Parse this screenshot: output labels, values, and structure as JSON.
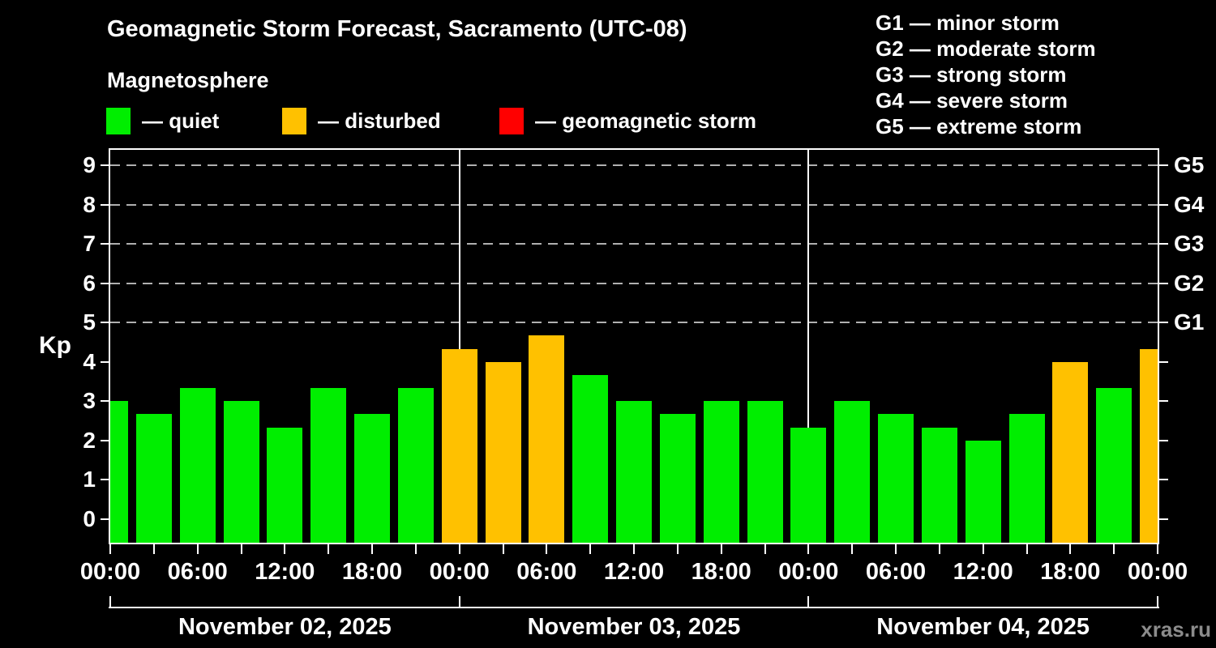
{
  "title": "Geomagnetic Storm Forecast, Sacramento (UTC-08)",
  "subtitle": "Magnetosphere",
  "watermark": "xras.ru",
  "condition_legend": [
    {
      "name": "quiet",
      "label": "— quiet",
      "color": "#00ee00"
    },
    {
      "name": "disturbed",
      "label": "— disturbed",
      "color": "#ffc100"
    },
    {
      "name": "geomagnetic-storm",
      "label": "— geomagnetic storm",
      "color": "#ff0000"
    }
  ],
  "storm_scale_legend": [
    {
      "code": "G1",
      "label": "minor storm"
    },
    {
      "code": "G2",
      "label": "moderate storm"
    },
    {
      "code": "G3",
      "label": "strong storm"
    },
    {
      "code": "G4",
      "label": "severe storm"
    },
    {
      "code": "G5",
      "label": "extreme storm"
    }
  ],
  "chart_data": {
    "type": "bar",
    "ylabel": "Kp",
    "ylim": [
      -0.6,
      9.4
    ],
    "y_ticks": [
      0,
      1,
      2,
      3,
      4,
      5,
      6,
      7,
      8,
      9
    ],
    "grid_levels": [
      5,
      6,
      7,
      8,
      9
    ],
    "grid_on": true,
    "right_axis_labels": [
      {
        "kp": 5,
        "label": "G1"
      },
      {
        "kp": 6,
        "label": "G2"
      },
      {
        "kp": 7,
        "label": "G3"
      },
      {
        "kp": 8,
        "label": "G4"
      },
      {
        "kp": 9,
        "label": "G5"
      }
    ],
    "x_axis": {
      "hours_total": 72,
      "tick_step_hours": 3,
      "label_step_hours": 6,
      "tick_labels": [
        "00:00",
        "06:00",
        "12:00",
        "18:00",
        "00:00",
        "06:00",
        "12:00",
        "18:00",
        "00:00",
        "06:00",
        "12:00",
        "18:00",
        "00:00"
      ]
    },
    "day_boundaries_hours": [
      0,
      24,
      48,
      72
    ],
    "days": [
      {
        "label": "November 02, 2025"
      },
      {
        "label": "November 03, 2025"
      },
      {
        "label": "November 04, 2025"
      }
    ],
    "status_colors": {
      "quiet": "#00ee00",
      "disturbed": "#ffc100",
      "storm": "#ff0000"
    },
    "bars": [
      {
        "hour": 0,
        "time": "00:00",
        "kp": 3.0,
        "status": "quiet"
      },
      {
        "hour": 3,
        "time": "03:00",
        "kp": 2.67,
        "status": "quiet"
      },
      {
        "hour": 6,
        "time": "06:00",
        "kp": 3.33,
        "status": "quiet"
      },
      {
        "hour": 9,
        "time": "09:00",
        "kp": 3.0,
        "status": "quiet"
      },
      {
        "hour": 12,
        "time": "12:00",
        "kp": 2.33,
        "status": "quiet"
      },
      {
        "hour": 15,
        "time": "15:00",
        "kp": 3.33,
        "status": "quiet"
      },
      {
        "hour": 18,
        "time": "18:00",
        "kp": 2.67,
        "status": "quiet"
      },
      {
        "hour": 21,
        "time": "21:00",
        "kp": 3.33,
        "status": "quiet"
      },
      {
        "hour": 24,
        "time": "00:00",
        "kp": 4.33,
        "status": "disturbed"
      },
      {
        "hour": 27,
        "time": "03:00",
        "kp": 4.0,
        "status": "disturbed"
      },
      {
        "hour": 30,
        "time": "06:00",
        "kp": 4.67,
        "status": "disturbed"
      },
      {
        "hour": 33,
        "time": "09:00",
        "kp": 3.67,
        "status": "quiet"
      },
      {
        "hour": 36,
        "time": "12:00",
        "kp": 3.0,
        "status": "quiet"
      },
      {
        "hour": 39,
        "time": "15:00",
        "kp": 2.67,
        "status": "quiet"
      },
      {
        "hour": 42,
        "time": "18:00",
        "kp": 3.0,
        "status": "quiet"
      },
      {
        "hour": 45,
        "time": "21:00",
        "kp": 3.0,
        "status": "quiet"
      },
      {
        "hour": 48,
        "time": "00:00",
        "kp": 2.33,
        "status": "quiet"
      },
      {
        "hour": 51,
        "time": "03:00",
        "kp": 3.0,
        "status": "quiet"
      },
      {
        "hour": 54,
        "time": "06:00",
        "kp": 2.67,
        "status": "quiet"
      },
      {
        "hour": 57,
        "time": "09:00",
        "kp": 2.33,
        "status": "quiet"
      },
      {
        "hour": 60,
        "time": "12:00",
        "kp": 2.0,
        "status": "quiet"
      },
      {
        "hour": 63,
        "time": "15:00",
        "kp": 2.67,
        "status": "quiet"
      },
      {
        "hour": 66,
        "time": "18:00",
        "kp": 4.0,
        "status": "disturbed"
      },
      {
        "hour": 69,
        "time": "21:00",
        "kp": 3.33,
        "status": "quiet"
      },
      {
        "hour": 72,
        "time": "00:00",
        "kp": 4.33,
        "status": "disturbed"
      }
    ]
  }
}
